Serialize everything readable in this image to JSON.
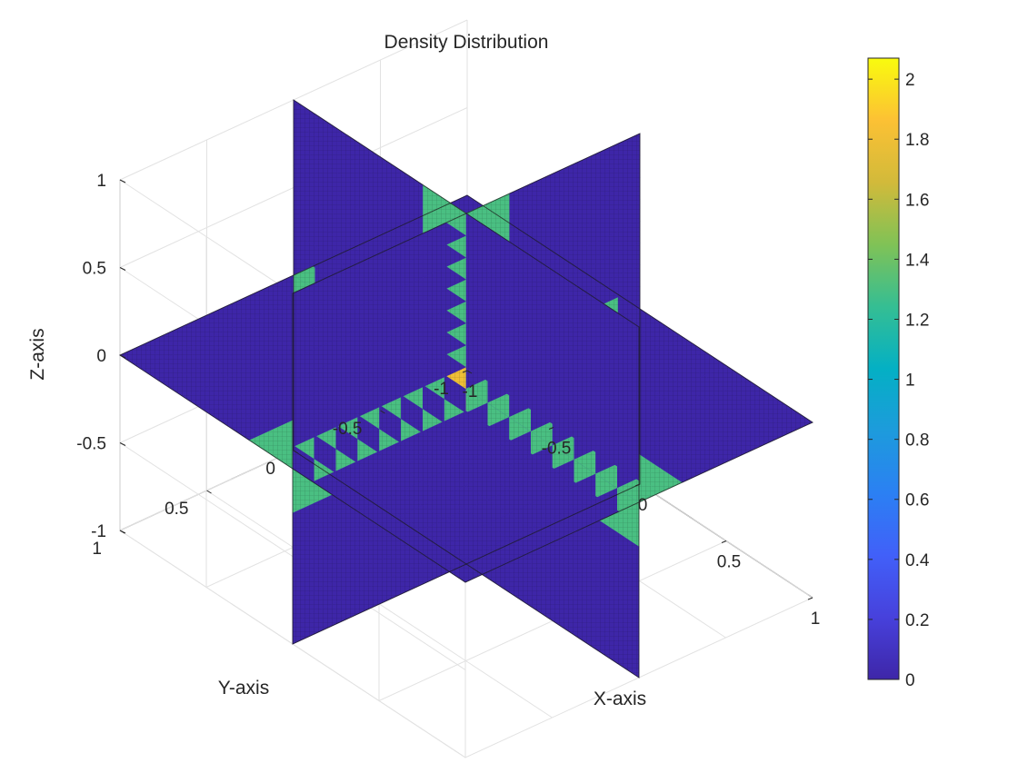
{
  "chart_data": {
    "type": "heatmap",
    "title": "Density Distribution",
    "xlabel": "X-axis",
    "ylabel": "Y-axis",
    "zlabel": "Z-axis",
    "xlim": [
      -1,
      1
    ],
    "ylim": [
      -1,
      1
    ],
    "zlim": [
      -1,
      1
    ],
    "x_ticks": [
      "-1",
      "-0.5",
      "0",
      "0.5",
      "1"
    ],
    "y_ticks": [
      "-1",
      "-0.5",
      "0",
      "0.5",
      "1"
    ],
    "z_ticks": [
      "-1",
      "-0.5",
      "0",
      "0.5",
      "1"
    ],
    "grid": true,
    "slices": [
      {
        "plane": "x",
        "at": 0
      },
      {
        "plane": "y",
        "at": 0
      },
      {
        "plane": "z",
        "at": 0
      }
    ],
    "density_regions": [
      {
        "x": [
          -0.25,
          0
        ],
        "y": [
          -0.25,
          0
        ],
        "z": [
          -0.25,
          0
        ],
        "value": 1.8
      },
      {
        "x": [
          -0.25,
          0
        ],
        "y": [
          -1,
          1
        ],
        "z": [
          -0.25,
          0
        ],
        "value": 1.3
      },
      {
        "x": [
          -1,
          1
        ],
        "y": [
          -0.25,
          0
        ],
        "z": [
          -0.25,
          0
        ],
        "value": 1.3
      },
      {
        "x": [
          -0.25,
          0
        ],
        "y": [
          -0.25,
          0
        ],
        "z": [
          -1,
          1
        ],
        "value": 1.3
      },
      {
        "x": [
          -0.25,
          0
        ],
        "y": [
          -0.25,
          0
        ],
        "z": [
          0,
          1
        ],
        "value": 0.4
      },
      {
        "x": [
          -0.25,
          0
        ],
        "y": [
          0,
          1
        ],
        "z": [
          -0.25,
          0
        ],
        "value": 0.4
      },
      {
        "x": [
          0,
          1
        ],
        "y": [
          -0.25,
          0
        ],
        "z": [
          -0.25,
          0
        ],
        "value": 0.4
      },
      {
        "x": [
          0.5,
          1
        ],
        "y": [
          0,
          0.25
        ],
        "z": [
          0.25,
          0.5
        ],
        "value": 0.4
      }
    ],
    "background_value": 0,
    "colorbar": {
      "min": 0,
      "max": 2.07,
      "ticks": [
        0,
        0.2,
        0.4,
        0.6,
        0.8,
        1,
        1.2,
        1.4,
        1.6,
        1.8,
        2
      ],
      "tick_labels": [
        "0",
        "0.2",
        "0.4",
        "0.6",
        "0.8",
        "1",
        "1.2",
        "1.4",
        "1.6",
        "1.8",
        "2"
      ],
      "colormap": "parula"
    }
  }
}
